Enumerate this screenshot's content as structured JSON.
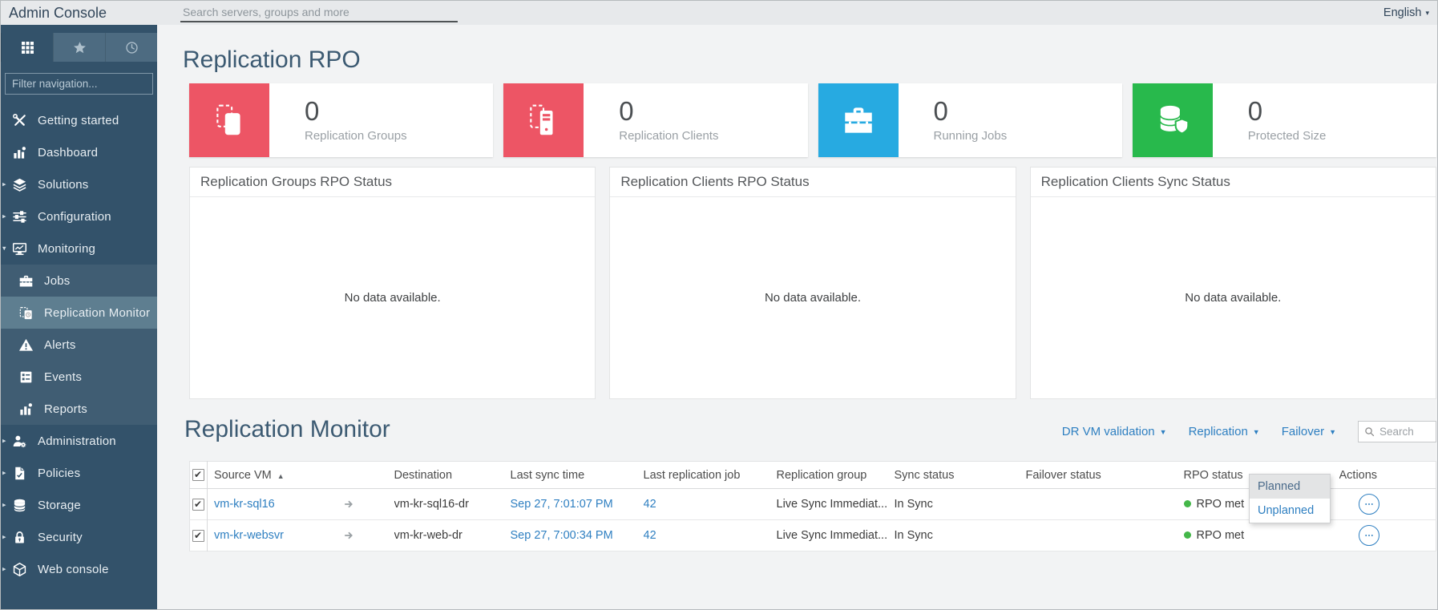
{
  "header": {
    "app_title": "Admin Console",
    "search_placeholder": "Search servers, groups and more",
    "language": "English",
    "language_caret": "▾"
  },
  "sidebar": {
    "filter_placeholder": "Filter navigation...",
    "tabs": [
      {
        "icon": "grid-icon",
        "active": true
      },
      {
        "icon": "star-icon",
        "active": false
      },
      {
        "icon": "clock-icon",
        "active": false
      }
    ],
    "items": [
      {
        "label": "Getting started",
        "icon": "tools-icon",
        "expand_char": "",
        "submenu": false,
        "active": false
      },
      {
        "label": "Dashboard",
        "icon": "dashboard-icon",
        "expand_char": "",
        "submenu": false,
        "active": false
      },
      {
        "label": "Solutions",
        "icon": "layers-icon",
        "expand_char": "▸",
        "submenu": false,
        "active": false
      },
      {
        "label": "Configuration",
        "icon": "sliders-icon",
        "expand_char": "▸",
        "submenu": false,
        "active": false
      },
      {
        "label": "Monitoring",
        "icon": "monitor-icon",
        "expand_char": "▾",
        "submenu": false,
        "active": false
      },
      {
        "label": "Jobs",
        "icon": "briefcase-icon",
        "expand_char": "",
        "submenu": true,
        "active": false
      },
      {
        "label": "Replication Monitor",
        "icon": "replication-icon",
        "expand_char": "",
        "submenu": true,
        "active": true
      },
      {
        "label": "Alerts",
        "icon": "alert-icon",
        "expand_char": "",
        "submenu": true,
        "active": false
      },
      {
        "label": "Events",
        "icon": "events-icon",
        "expand_char": "",
        "submenu": true,
        "active": false
      },
      {
        "label": "Reports",
        "icon": "reports-icon",
        "expand_char": "",
        "submenu": true,
        "active": false
      },
      {
        "label": "Administration",
        "icon": "admin-icon",
        "expand_char": "▸",
        "submenu": false,
        "active": false
      },
      {
        "label": "Policies",
        "icon": "policies-icon",
        "expand_char": "▸",
        "submenu": false,
        "active": false
      },
      {
        "label": "Storage",
        "icon": "storage-icon",
        "expand_char": "▸",
        "submenu": false,
        "active": false
      },
      {
        "label": "Security",
        "icon": "security-icon",
        "expand_char": "▸",
        "submenu": false,
        "active": false
      },
      {
        "label": "Web console",
        "icon": "webconsole-icon",
        "expand_char": "▸",
        "submenu": false,
        "active": false
      }
    ]
  },
  "page": {
    "title": "Replication RPO",
    "stat_cards": [
      {
        "value": "0",
        "label": "Replication Groups",
        "icon": "replication-groups-icon",
        "color": "#ed5565"
      },
      {
        "value": "0",
        "label": "Replication Clients",
        "icon": "replication-clients-icon",
        "color": "#ed5565"
      },
      {
        "value": "0",
        "label": "Running Jobs",
        "icon": "running-jobs-icon",
        "color": "#27aae1"
      },
      {
        "value": "0",
        "label": "Protected Size",
        "icon": "protected-size-icon",
        "color": "#28b94c"
      }
    ],
    "panels": [
      {
        "title": "Replication Groups RPO Status",
        "empty_text": "No data available."
      },
      {
        "title": "Replication Clients RPO Status",
        "empty_text": "No data available."
      },
      {
        "title": "Replication Clients Sync Status",
        "empty_text": "No data available."
      }
    ]
  },
  "monitor": {
    "title": "Replication Monitor",
    "toolbar": {
      "links": [
        {
          "label": "DR VM validation",
          "caret": "▼"
        },
        {
          "label": "Replication",
          "caret": "▼"
        },
        {
          "label": "Failover",
          "caret": "▼"
        }
      ],
      "search_placeholder": "Search",
      "search_icon": "search-icon"
    },
    "failover_menu": {
      "items": [
        {
          "label": "Planned",
          "highlighted": true
        },
        {
          "label": "Unplanned",
          "highlighted": false
        }
      ]
    },
    "table": {
      "select_all": true,
      "sort_icon": "▲",
      "arrow_icon": "arrow-right-icon",
      "actions_icon": "ellipsis-icon",
      "rpo_dot_color": "#44b749",
      "headers": {
        "source": "Source VM",
        "destination": "Destination",
        "last_sync": "Last sync time",
        "last_job": "Last replication job",
        "group": "Replication group",
        "sync_status": "Sync status",
        "failover_status": "Failover status",
        "rpo_status": "RPO status",
        "actions": "Actions"
      },
      "rows": [
        {
          "selected": true,
          "source": "vm-kr-sql16",
          "destination": "vm-kr-sql16-dr",
          "last_sync": "Sep 27, 7:01:07 PM",
          "job": "42",
          "group": "Live Sync Immediat...",
          "sync_status": "In Sync",
          "failover_status": "",
          "rpo_status": "RPO met"
        },
        {
          "selected": true,
          "source": "vm-kr-websvr",
          "destination": "vm-kr-web-dr",
          "last_sync": "Sep 27, 7:00:34 PM",
          "job": "42",
          "group": "Live Sync Immediat...",
          "sync_status": "In Sync",
          "failover_status": "",
          "rpo_status": "RPO met"
        }
      ]
    }
  },
  "colors": {
    "sidebar_bg": "#33526a",
    "sidebar_active_bg": "#5e7e90",
    "topbar_bg": "#e7e9eb",
    "main_bg": "#f2f3f4",
    "title_text": "#3c5a72",
    "link_blue": "#2e7fc1",
    "card_red": "#ed5565",
    "card_blue": "#27aae1",
    "card_green": "#28b94c",
    "status_green_dot": "#44b749"
  }
}
